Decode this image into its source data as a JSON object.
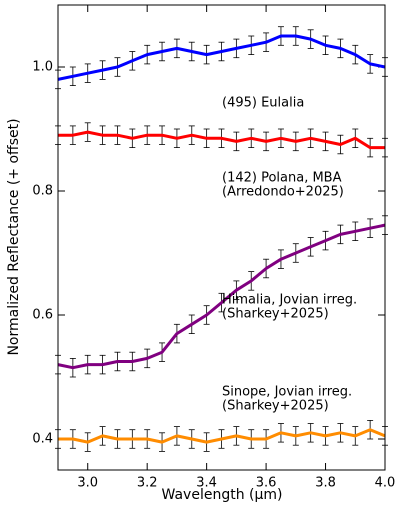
{
  "chart_data": {
    "type": "line",
    "xlabel": "Wavelength (μm)",
    "ylabel": "Normalized Reflectance (+ offset)",
    "x": [
      2.9,
      2.95,
      3.0,
      3.05,
      3.1,
      3.15,
      3.2,
      3.25,
      3.3,
      3.35,
      3.4,
      3.45,
      3.5,
      3.55,
      3.6,
      3.65,
      3.7,
      3.75,
      3.8,
      3.85,
      3.9,
      3.95,
      4.0
    ],
    "xlim": [
      2.9,
      4.0
    ],
    "xticks": [
      {
        "value": 3,
        "label": "3.0"
      },
      {
        "value": 3.2,
        "label": "3.2"
      },
      {
        "value": 3.4,
        "label": "3.4"
      },
      {
        "value": 3.6,
        "label": "3.6"
      },
      {
        "value": 3.8,
        "label": "3.8"
      },
      {
        "value": 4,
        "label": "4.0"
      }
    ],
    "ylim": [
      0.35,
      1.1
    ],
    "yticks": [
      0.4,
      0.6,
      0.8,
      {
        "value": 1,
        "label": "1.0"
      }
    ],
    "series": [
      {
        "label": [
          "(495) Eulalia"
        ],
        "color": "#0000ff",
        "error": 0.015,
        "values": [
          0.98,
          0.985,
          0.99,
          0.995,
          1.0,
          1.01,
          1.02,
          1.025,
          1.03,
          1.025,
          1.02,
          1.025,
          1.03,
          1.035,
          1.04,
          1.05,
          1.05,
          1.045,
          1.035,
          1.03,
          1.02,
          1.005,
          1.0
        ]
      },
      {
        "label": [
          "(142) Polana, MBA",
          "(Arredondo+2025)"
        ],
        "color": "#ff0000",
        "error": 0.015,
        "values": [
          0.89,
          0.89,
          0.895,
          0.89,
          0.89,
          0.885,
          0.89,
          0.89,
          0.885,
          0.89,
          0.885,
          0.885,
          0.88,
          0.885,
          0.88,
          0.885,
          0.88,
          0.885,
          0.88,
          0.875,
          0.885,
          0.87,
          0.87
        ]
      },
      {
        "label": [
          "Himalia, Jovian irreg.",
          "(Sharkey+2025)"
        ],
        "color": "#800080",
        "error": 0.015,
        "values": [
          0.52,
          0.515,
          0.52,
          0.52,
          0.525,
          0.525,
          0.53,
          0.54,
          0.57,
          0.585,
          0.6,
          0.62,
          0.64,
          0.655,
          0.675,
          0.69,
          0.7,
          0.71,
          0.72,
          0.73,
          0.735,
          0.74,
          0.745
        ]
      },
      {
        "label": [
          "Sinope, Jovian irreg.",
          "(Sharkey+2025)"
        ],
        "color": "#ff8c00",
        "error": 0.015,
        "values": [
          0.4,
          0.4,
          0.395,
          0.405,
          0.4,
          0.4,
          0.4,
          0.395,
          0.405,
          0.4,
          0.395,
          0.4,
          0.405,
          0.4,
          0.4,
          0.41,
          0.405,
          0.41,
          0.405,
          0.41,
          0.405,
          0.415,
          0.405
        ]
      }
    ]
  }
}
